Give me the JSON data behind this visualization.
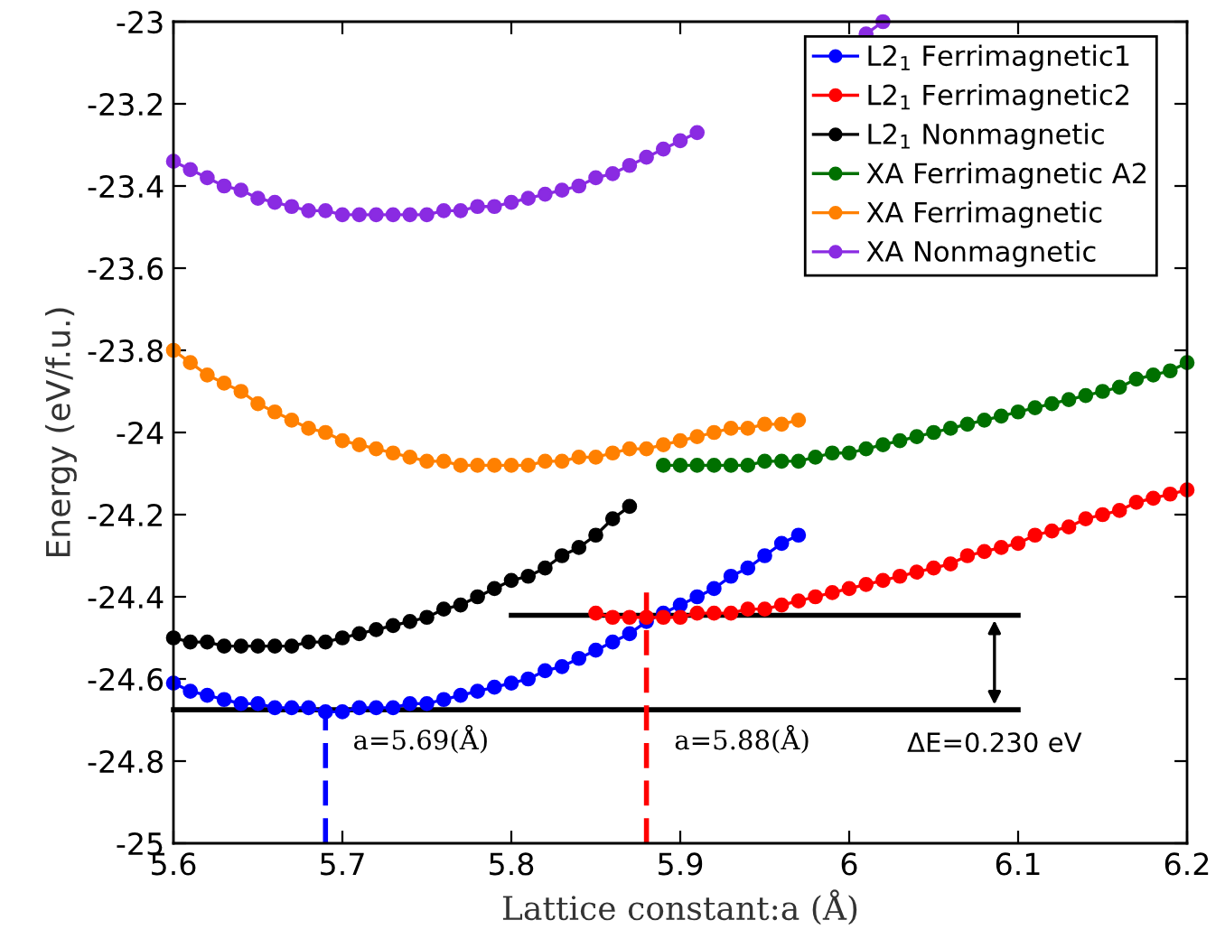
{
  "chart_data": {
    "type": "line",
    "xlabel": "Lattice constant:a (Å)",
    "ylabel": "Energy (eV/f.u.)",
    "xlim": [
      5.6,
      6.2
    ],
    "ylim": [
      -25,
      -23
    ],
    "xticks": [
      5.6,
      5.7,
      5.8,
      5.9,
      6,
      6.1,
      6.2
    ],
    "yticks": [
      -25,
      -24.8,
      -24.6,
      -24.4,
      -24.2,
      -24,
      -23.8,
      -23.6,
      -23.4,
      -23.2,
      -23
    ],
    "grid": false,
    "legend": "top right",
    "marker": "circle",
    "line_style": "solid",
    "series": [
      {
        "name": "L2$_{1}$ Ferrimagnetic1",
        "color": "#0000ff",
        "x": [
          5.6,
          5.61,
          5.62,
          5.63,
          5.64,
          5.65,
          5.66,
          5.67,
          5.68,
          5.69,
          5.7,
          5.71,
          5.72,
          5.73,
          5.74,
          5.75,
          5.76,
          5.77,
          5.78,
          5.79,
          5.8,
          5.81,
          5.82,
          5.83,
          5.84,
          5.85,
          5.86,
          5.87,
          5.88,
          5.89,
          5.9,
          5.91,
          5.92,
          5.93,
          5.94,
          5.95,
          5.96,
          5.97
        ],
        "values": [
          -24.61,
          -24.63,
          -24.64,
          -24.65,
          -24.66,
          -24.66,
          -24.67,
          -24.67,
          -24.67,
          -24.68,
          -24.68,
          -24.67,
          -24.67,
          -24.67,
          -24.66,
          -24.66,
          -24.65,
          -24.64,
          -24.63,
          -24.62,
          -24.61,
          -24.6,
          -24.58,
          -24.57,
          -24.55,
          -24.53,
          -24.51,
          -24.49,
          -24.46,
          -24.44,
          -24.42,
          -24.4,
          -24.38,
          -24.35,
          -24.33,
          -24.3,
          -24.27,
          -24.25
        ]
      },
      {
        "name": "L2$_{1}$ Ferrimagnetic2",
        "color": "#ff0000",
        "x": [
          5.85,
          5.86,
          5.87,
          5.88,
          5.89,
          5.9,
          5.91,
          5.92,
          5.93,
          5.94,
          5.95,
          5.96,
          5.97,
          5.98,
          5.99,
          6.0,
          6.01,
          6.02,
          6.03,
          6.04,
          6.05,
          6.06,
          6.07,
          6.08,
          6.09,
          6.1,
          6.11,
          6.12,
          6.13,
          6.14,
          6.15,
          6.16,
          6.17,
          6.18,
          6.19,
          6.2
        ],
        "values": [
          -24.44,
          -24.45,
          -24.45,
          -24.45,
          -24.45,
          -24.45,
          -24.44,
          -24.44,
          -24.44,
          -24.43,
          -24.43,
          -24.42,
          -24.41,
          -24.4,
          -24.39,
          -24.38,
          -24.37,
          -24.36,
          -24.35,
          -24.34,
          -24.33,
          -24.32,
          -24.3,
          -24.29,
          -24.28,
          -24.27,
          -24.25,
          -24.24,
          -24.23,
          -24.21,
          -24.2,
          -24.19,
          -24.17,
          -24.16,
          -24.15,
          -24.14
        ]
      },
      {
        "name": "L2$_{1}$ Nonmagnetic",
        "color": "#000000",
        "x": [
          5.6,
          5.61,
          5.62,
          5.63,
          5.64,
          5.65,
          5.66,
          5.67,
          5.68,
          5.69,
          5.7,
          5.71,
          5.72,
          5.73,
          5.74,
          5.75,
          5.76,
          5.77,
          5.78,
          5.79,
          5.8,
          5.81,
          5.82,
          5.83,
          5.84,
          5.85,
          5.86,
          5.87
        ],
        "values": [
          -24.5,
          -24.51,
          -24.51,
          -24.52,
          -24.52,
          -24.52,
          -24.52,
          -24.52,
          -24.51,
          -24.51,
          -24.5,
          -24.49,
          -24.48,
          -24.47,
          -24.46,
          -24.45,
          -24.43,
          -24.42,
          -24.4,
          -24.38,
          -24.36,
          -24.35,
          -24.33,
          -24.3,
          -24.28,
          -24.25,
          -24.21,
          -24.18
        ]
      },
      {
        "name": "XA Ferrimagnetic A2",
        "color": "#007000",
        "x": [
          5.89,
          5.9,
          5.91,
          5.92,
          5.93,
          5.94,
          5.95,
          5.96,
          5.97,
          5.98,
          5.99,
          6.0,
          6.01,
          6.02,
          6.03,
          6.04,
          6.05,
          6.06,
          6.07,
          6.08,
          6.09,
          6.1,
          6.11,
          6.12,
          6.13,
          6.14,
          6.15,
          6.16,
          6.17,
          6.18,
          6.19,
          6.2
        ],
        "values": [
          -24.08,
          -24.08,
          -24.08,
          -24.08,
          -24.08,
          -24.08,
          -24.07,
          -24.07,
          -24.07,
          -24.06,
          -24.05,
          -24.05,
          -24.04,
          -24.03,
          -24.02,
          -24.01,
          -24.0,
          -23.99,
          -23.98,
          -23.97,
          -23.96,
          -23.95,
          -23.94,
          -23.93,
          -23.92,
          -23.91,
          -23.9,
          -23.89,
          -23.87,
          -23.86,
          -23.85,
          -23.83
        ]
      },
      {
        "name": "XA Ferrimagnetic",
        "color": "#ff8000",
        "x": [
          5.6,
          5.61,
          5.62,
          5.63,
          5.64,
          5.65,
          5.66,
          5.67,
          5.68,
          5.69,
          5.7,
          5.71,
          5.72,
          5.73,
          5.74,
          5.75,
          5.76,
          5.77,
          5.78,
          5.79,
          5.8,
          5.81,
          5.82,
          5.83,
          5.84,
          5.85,
          5.86,
          5.87,
          5.88,
          5.89,
          5.9,
          5.91,
          5.92,
          5.93,
          5.94,
          5.95,
          5.96,
          5.97
        ],
        "values": [
          -23.8,
          -23.83,
          -23.86,
          -23.88,
          -23.9,
          -23.93,
          -23.95,
          -23.97,
          -23.99,
          -24.0,
          -24.02,
          -24.03,
          -24.04,
          -24.05,
          -24.06,
          -24.07,
          -24.07,
          -24.08,
          -24.08,
          -24.08,
          -24.08,
          -24.08,
          -24.07,
          -24.07,
          -24.06,
          -24.06,
          -24.05,
          -24.04,
          -24.04,
          -24.03,
          -24.02,
          -24.01,
          -24.0,
          -23.99,
          -23.99,
          -23.98,
          -23.98,
          -23.97
        ]
      },
      {
        "name": "XA Nonmagnetic",
        "color": "#8a2be2",
        "x": [
          5.6,
          5.61,
          5.62,
          5.63,
          5.64,
          5.65,
          5.66,
          5.67,
          5.68,
          5.69,
          5.7,
          5.71,
          5.72,
          5.73,
          5.74,
          5.75,
          5.76,
          5.77,
          5.78,
          5.79,
          5.8,
          5.81,
          5.82,
          5.83,
          5.84,
          5.85,
          5.86,
          5.87,
          5.88,
          5.89,
          5.9,
          5.91,
          5.92,
          5.93,
          5.94,
          5.95,
          5.96,
          5.97,
          5.98,
          5.99,
          6.0,
          6.01,
          6.02
        ],
        "values": [
          -23.34,
          -23.36,
          -23.38,
          -23.4,
          -23.41,
          -23.43,
          -23.44,
          -23.45,
          -23.46,
          -23.46,
          -23.47,
          -23.47,
          -23.47,
          -23.47,
          -23.47,
          -23.47,
          -23.46,
          -23.46,
          -23.45,
          -23.45,
          -23.44,
          -23.43,
          -23.42,
          -23.41,
          -23.4,
          -23.38,
          -23.37,
          -23.35,
          -23.33,
          -23.31,
          -23.29,
          -23.27,
          null,
          null,
          null,
          null,
          null,
          null,
          null,
          null,
          null,
          -23.03,
          -23.0
        ]
      },
      {
        "color": "#000000",
        "marker": "none",
        "x": [
          5.8,
          6.1
        ],
        "values": [
          -24.445,
          -24.445
        ]
      },
      {
        "color": "#000000",
        "marker": "none",
        "x": [
          5.6,
          6.1
        ],
        "values": [
          -24.675,
          -24.675
        ]
      },
      {
        "color": "#0000ff",
        "marker": "none",
        "line_style": "dashed",
        "x": [
          5.69,
          5.69
        ],
        "values": [
          -25,
          -24.675
        ]
      },
      {
        "color": "#ff0000",
        "marker": "none",
        "line_style": "dashed",
        "x": [
          5.88,
          5.88
        ],
        "values": [
          -25,
          -24.38
        ]
      }
    ],
    "annotations": [
      "a=5.69(Å)",
      "a=5.88(Å)",
      "ΔE=0.230 eV"
    ]
  }
}
